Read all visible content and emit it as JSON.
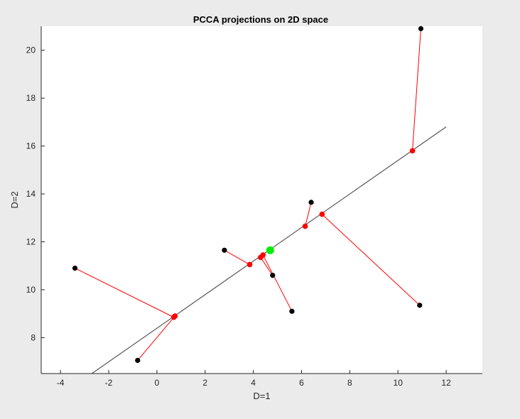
{
  "chart_data": {
    "type": "scatter",
    "title": "PCCA projections on 2D space",
    "xlabel": "D=1",
    "ylabel": "D=2",
    "xlim": [
      -4.8,
      13.5
    ],
    "ylim": [
      6.5,
      21.0
    ],
    "xticks": [
      -4,
      -2,
      0,
      2,
      4,
      6,
      8,
      10,
      12
    ],
    "yticks": [
      8,
      10,
      12,
      14,
      16,
      18,
      20
    ],
    "grid": false,
    "legend": "none",
    "colors": {
      "background": "#ebebeb",
      "axes_bg": "#ffffff",
      "axis": "#262626",
      "line": "#555555",
      "connector": "#ff0000",
      "original_point": "#000000",
      "projected_point": "#ff0000",
      "mean_point": "#00ee00"
    },
    "line": {
      "x": [
        -2.7,
        12.0
      ],
      "y": [
        6.5,
        16.8
      ]
    },
    "mean": {
      "x": 4.7,
      "y": 11.65
    },
    "points": [
      {
        "x": 10.95,
        "y": 20.9,
        "px": 10.6,
        "py": 15.8
      },
      {
        "x": -3.4,
        "y": 10.9,
        "px": 0.7,
        "py": 8.85
      },
      {
        "x": -0.8,
        "y": 7.05,
        "px": 0.75,
        "py": 8.9
      },
      {
        "x": 2.8,
        "y": 11.65,
        "px": 3.85,
        "py": 11.05
      },
      {
        "x": 4.8,
        "y": 10.6,
        "px": 4.3,
        "py": 11.35
      },
      {
        "x": 5.6,
        "y": 9.1,
        "px": 4.4,
        "py": 11.45
      },
      {
        "x": 6.4,
        "y": 13.65,
        "px": 6.15,
        "py": 12.65
      },
      {
        "x": 10.9,
        "y": 9.35,
        "px": 6.85,
        "py": 13.15
      }
    ]
  }
}
